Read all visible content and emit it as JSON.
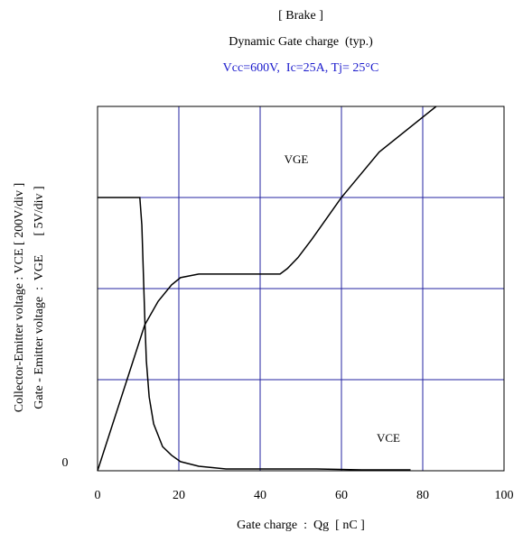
{
  "chart_data": {
    "type": "line",
    "title": "[ Brake ]",
    "subtitle": "Dynamic Gate charge  (typ.)",
    "conditions": "Vcc=600V,  Ic=25A, Tj= 25°C",
    "x_label": "Gate charge  :  Qg  [ nC ]",
    "y_label": "Collector-Emitter voltage : VCE [ 200V/div ]",
    "y2_label": "Gate - Emitter voltage  :  VGE      [ 5V/div ]",
    "xlim": [
      0,
      100
    ],
    "xticks": [
      0,
      20,
      40,
      60,
      80,
      100
    ],
    "ylim": [
      0,
      800
    ],
    "yticks": [
      0
    ],
    "ygrid": [
      200,
      400,
      600
    ],
    "y2lim": [
      0,
      20
    ],
    "grid": true,
    "grid_color": "#2323a0",
    "series": [
      {
        "name": "VCE",
        "color": "#000000",
        "x": [
          0,
          10.4,
          10.9,
          11.6,
          12,
          12.7,
          13.8,
          16,
          18.2,
          20.4,
          24.9,
          31.6,
          53.8,
          64.9,
          77
        ],
        "values": [
          600,
          600,
          539,
          340,
          242,
          162,
          103,
          53,
          34,
          20,
          10,
          4,
          4,
          2,
          2
        ]
      },
      {
        "name": "VGE",
        "color": "#000000",
        "axis": "y2",
        "x": [
          0,
          11.6,
          14.9,
          18.2,
          20.4,
          24.9,
          44.9,
          46.7,
          49.3,
          52.7,
          60,
          69.3,
          83.3
        ],
        "values": [
          0,
          8.0,
          9.3,
          10.2,
          10.6,
          10.8,
          10.8,
          11.1,
          11.7,
          12.7,
          15.0,
          17.5,
          20
        ]
      }
    ]
  }
}
